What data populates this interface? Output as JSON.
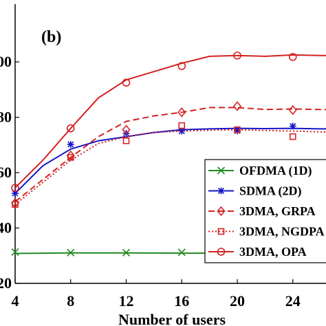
{
  "chart_data": {
    "type": "line",
    "panel_label": "(b)",
    "xlabel": "Number of users",
    "ylabel": "",
    "xlim": [
      4,
      28
    ],
    "ylim": [
      20,
      100
    ],
    "xticks": [
      4,
      8,
      12,
      16,
      20,
      24
    ],
    "yticks": [
      20,
      40,
      60,
      80,
      100
    ],
    "ytick_labels_visible": [
      "20",
      "40",
      "60",
      "80",
      "00"
    ],
    "legend_position": "lower-right",
    "series": [
      {
        "name": "OFDMA (1D)",
        "color": "#1f8a1f",
        "line": "solid",
        "marker": "x",
        "curve_x": [
          4,
          8,
          12,
          16,
          20,
          24,
          28
        ],
        "curve_y": [
          30.8,
          31.0,
          31.0,
          30.9,
          30.9,
          31.0,
          31.0
        ],
        "marker_x": [
          4,
          8,
          12,
          16,
          20,
          24
        ],
        "marker_y": [
          31.3,
          31.1,
          31.1,
          31.2,
          30.9,
          30.8
        ]
      },
      {
        "name": "SDMA (2D)",
        "color": "#1414c8",
        "line": "solid",
        "marker": "asterisk",
        "curve_x": [
          4,
          6,
          8,
          10,
          12,
          14,
          16,
          18,
          20,
          22,
          24,
          26,
          28
        ],
        "curve_y": [
          52.5,
          62.5,
          68.5,
          71.5,
          73.0,
          74.5,
          75.5,
          75.8,
          76.0,
          75.9,
          76.0,
          75.8,
          75.8
        ],
        "marker_x": [
          4,
          8,
          12,
          16,
          20,
          24
        ],
        "marker_y": [
          52.5,
          70.2,
          74.2,
          75.0,
          75.1,
          76.8
        ]
      },
      {
        "name": "3DMA, GRPA",
        "color": "#d42020",
        "line": "dashed",
        "marker": "diamond",
        "curve_x": [
          4,
          6,
          8,
          10,
          12,
          14,
          16,
          18,
          20,
          22,
          24,
          26,
          28
        ],
        "curve_y": [
          49.5,
          57.5,
          65.5,
          73.0,
          78.5,
          80.5,
          81.8,
          83.5,
          83.5,
          82.8,
          83.0,
          82.8,
          82.8
        ],
        "marker_x": [
          4,
          8,
          12,
          16,
          20,
          24
        ],
        "marker_y": [
          49.0,
          66.2,
          75.5,
          81.8,
          84.0,
          82.6
        ]
      },
      {
        "name": "3DMA, NGDPA",
        "color": "#d42020",
        "line": "dotted",
        "marker": "square",
        "curve_x": [
          4,
          6,
          8,
          10,
          12,
          14,
          16,
          18,
          20,
          22,
          24,
          26,
          28
        ],
        "curve_y": [
          48.5,
          56.5,
          64.5,
          70.5,
          73.0,
          74.5,
          75.0,
          75.3,
          75.5,
          75.2,
          75.0,
          74.7,
          74.5
        ],
        "marker_x": [
          4,
          8,
          12,
          16,
          20,
          24
        ],
        "marker_y": [
          48.5,
          65.5,
          71.5,
          77.0,
          75.5,
          73.0
        ]
      },
      {
        "name": "3DMA, OPA",
        "color": "#d42020",
        "line": "solid",
        "marker": "circle",
        "curve_x": [
          4,
          6,
          8,
          10,
          12,
          14,
          16,
          18,
          20,
          22,
          24,
          26,
          28
        ],
        "curve_y": [
          54.5,
          64.5,
          76.0,
          87.0,
          93.5,
          96.5,
          99.5,
          102.0,
          102.3,
          102.0,
          102.5,
          102.3,
          102.3
        ],
        "marker_x": [
          4,
          8,
          12,
          16,
          20,
          24
        ],
        "marker_y": [
          54.5,
          76.0,
          92.5,
          98.5,
          102.3,
          101.8
        ]
      }
    ]
  }
}
